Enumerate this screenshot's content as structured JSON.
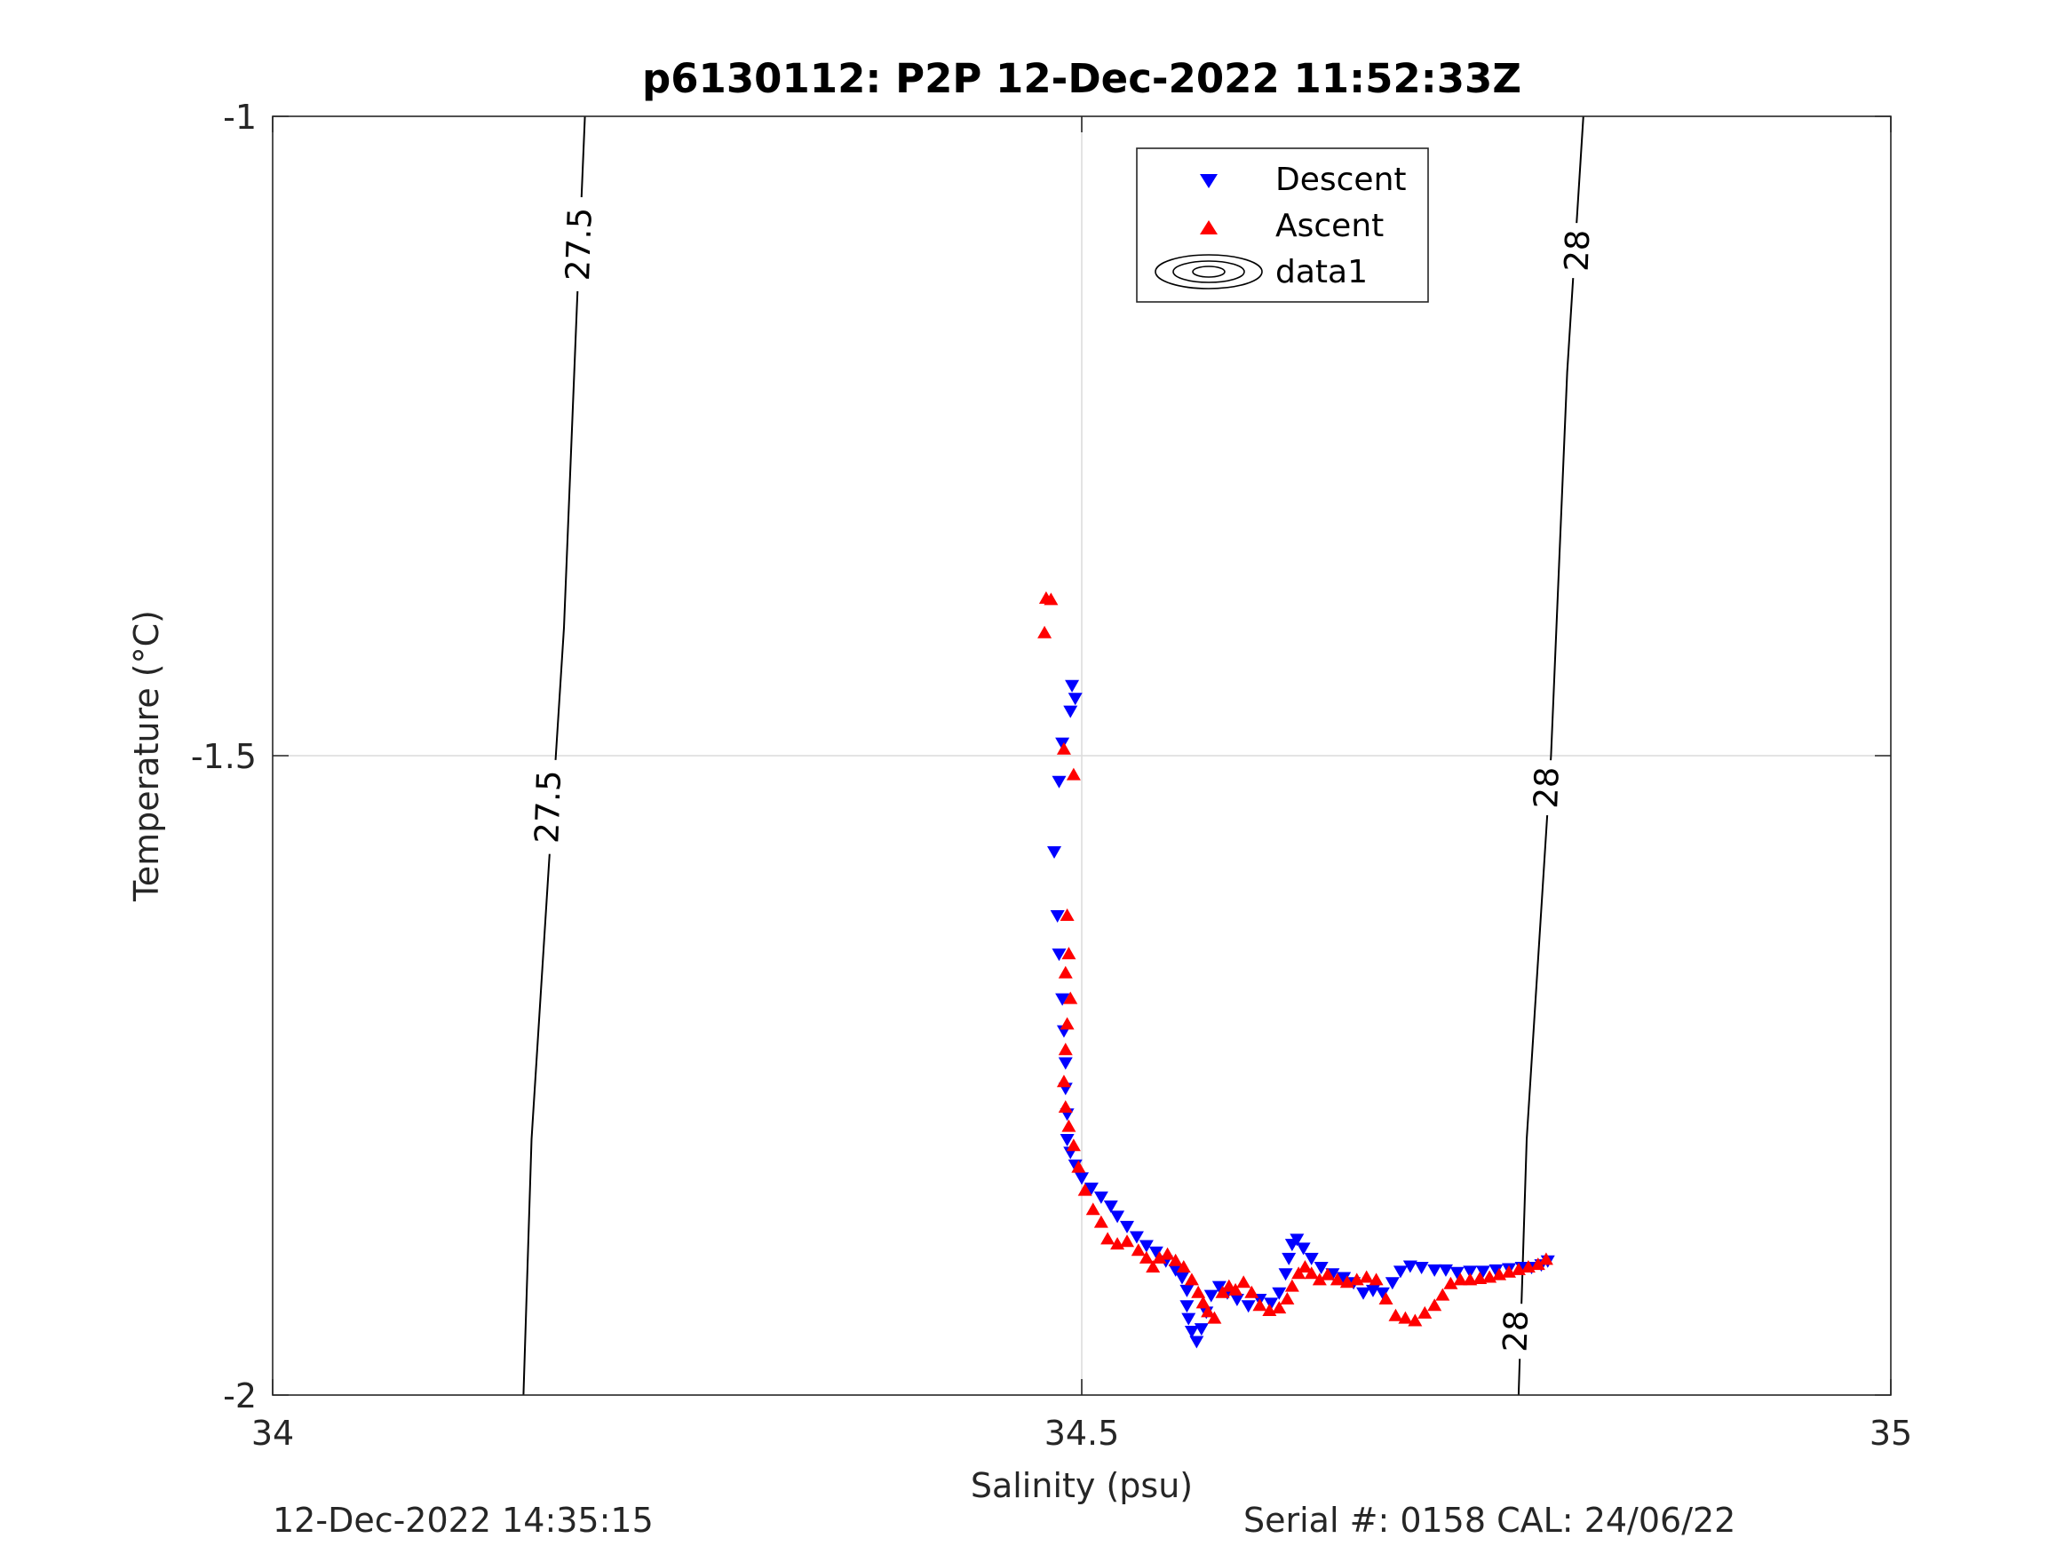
{
  "chart_data": {
    "type": "scatter",
    "title": "p6130112: P2P 12-Dec-2022 11:52:33Z",
    "xlabel": "Salinity (psu)",
    "ylabel": "Temperature (°C)",
    "xlim": [
      34,
      35
    ],
    "ylim": [
      -2,
      -1
    ],
    "x_ticks": [
      34,
      34.5,
      35
    ],
    "y_ticks": [
      -1,
      -1.5,
      -2
    ],
    "x_tick_labels": [
      "34",
      "34.5",
      "35"
    ],
    "y_tick_labels": [
      "-1",
      "-1.5",
      "-2"
    ],
    "grid": true,
    "legend_position": "top-center",
    "legend": [
      "Descent",
      "Ascent",
      "data1"
    ],
    "contours": [
      {
        "level": "27.5",
        "points": [
          [
            34.193,
            -1.0
          ],
          [
            34.188,
            -1.15
          ],
          [
            34.18,
            -1.4
          ],
          [
            34.17,
            -1.6
          ],
          [
            34.16,
            -1.8
          ],
          [
            34.155,
            -2.0
          ]
        ]
      },
      {
        "level": "28",
        "points": [
          [
            34.81,
            -1.0
          ],
          [
            34.8,
            -1.2
          ],
          [
            34.79,
            -1.5
          ],
          [
            34.775,
            -1.8
          ],
          [
            34.77,
            -2.0
          ]
        ]
      }
    ],
    "contour_labels": [
      {
        "text": "27.5",
        "x": 34.189,
        "y": -1.1
      },
      {
        "text": "27.5",
        "x": 34.17,
        "y": -1.54
      },
      {
        "text": "28",
        "x": 34.806,
        "y": -1.105
      },
      {
        "text": "28",
        "x": 34.787,
        "y": -1.525
      },
      {
        "text": "28",
        "x": 34.768,
        "y": -1.95
      }
    ],
    "series": [
      {
        "name": "Descent",
        "color": "#0000ff",
        "marker": "triangle-down",
        "points": [
          [
            34.494,
            -1.445
          ],
          [
            34.496,
            -1.455
          ],
          [
            34.493,
            -1.465
          ],
          [
            34.488,
            -1.49
          ],
          [
            34.486,
            -1.52
          ],
          [
            34.483,
            -1.575
          ],
          [
            34.485,
            -1.625
          ],
          [
            34.486,
            -1.655
          ],
          [
            34.488,
            -1.69
          ],
          [
            34.489,
            -1.715
          ],
          [
            34.49,
            -1.74
          ],
          [
            34.49,
            -1.76
          ],
          [
            34.491,
            -1.78
          ],
          [
            34.491,
            -1.8
          ],
          [
            34.493,
            -1.81
          ],
          [
            34.496,
            -1.82
          ],
          [
            34.5,
            -1.83
          ],
          [
            34.506,
            -1.838
          ],
          [
            34.512,
            -1.845
          ],
          [
            34.518,
            -1.852
          ],
          [
            34.522,
            -1.86
          ],
          [
            34.528,
            -1.868
          ],
          [
            34.534,
            -1.876
          ],
          [
            34.54,
            -1.883
          ],
          [
            34.546,
            -1.888
          ],
          [
            34.552,
            -1.895
          ],
          [
            34.558,
            -1.902
          ],
          [
            34.562,
            -1.908
          ],
          [
            34.565,
            -1.918
          ],
          [
            34.565,
            -1.93
          ],
          [
            34.566,
            -1.94
          ],
          [
            34.568,
            -1.95
          ],
          [
            34.571,
            -1.958
          ],
          [
            34.574,
            -1.948
          ],
          [
            34.577,
            -1.935
          ],
          [
            34.58,
            -1.922
          ],
          [
            34.585,
            -1.915
          ],
          [
            34.59,
            -1.92
          ],
          [
            34.596,
            -1.925
          ],
          [
            34.603,
            -1.93
          ],
          [
            34.61,
            -1.925
          ],
          [
            34.617,
            -1.928
          ],
          [
            34.622,
            -1.92
          ],
          [
            34.626,
            -1.905
          ],
          [
            34.628,
            -1.893
          ],
          [
            34.63,
            -1.882
          ],
          [
            34.633,
            -1.878
          ],
          [
            34.637,
            -1.885
          ],
          [
            34.642,
            -1.893
          ],
          [
            34.648,
            -1.9
          ],
          [
            34.655,
            -1.905
          ],
          [
            34.662,
            -1.908
          ],
          [
            34.668,
            -1.912
          ],
          [
            34.674,
            -1.92
          ],
          [
            34.68,
            -1.918
          ],
          [
            34.686,
            -1.92
          ],
          [
            34.692,
            -1.912
          ],
          [
            34.697,
            -1.903
          ],
          [
            34.703,
            -1.899
          ],
          [
            34.71,
            -1.9
          ],
          [
            34.718,
            -1.902
          ],
          [
            34.725,
            -1.902
          ],
          [
            34.732,
            -1.904
          ],
          [
            34.74,
            -1.903
          ],
          [
            34.748,
            -1.903
          ],
          [
            34.756,
            -1.902
          ],
          [
            34.764,
            -1.901
          ],
          [
            34.772,
            -1.9
          ],
          [
            34.778,
            -1.9
          ],
          [
            34.784,
            -1.898
          ],
          [
            34.788,
            -1.895
          ]
        ]
      },
      {
        "name": "Ascent",
        "color": "#ff0000",
        "marker": "triangle-up",
        "points": [
          [
            34.477,
            -1.404
          ],
          [
            34.478,
            -1.377
          ],
          [
            34.481,
            -1.378
          ],
          [
            34.489,
            -1.495
          ],
          [
            34.495,
            -1.515
          ],
          [
            34.491,
            -1.625
          ],
          [
            34.492,
            -1.655
          ],
          [
            34.49,
            -1.67
          ],
          [
            34.493,
            -1.69
          ],
          [
            34.491,
            -1.71
          ],
          [
            34.49,
            -1.73
          ],
          [
            34.489,
            -1.755
          ],
          [
            34.49,
            -1.775
          ],
          [
            34.492,
            -1.79
          ],
          [
            34.495,
            -1.805
          ],
          [
            34.498,
            -1.822
          ],
          [
            34.502,
            -1.84
          ],
          [
            34.507,
            -1.855
          ],
          [
            34.512,
            -1.865
          ],
          [
            34.516,
            -1.878
          ],
          [
            34.522,
            -1.882
          ],
          [
            34.528,
            -1.88
          ],
          [
            34.535,
            -1.887
          ],
          [
            34.54,
            -1.893
          ],
          [
            34.544,
            -1.9
          ],
          [
            34.548,
            -1.893
          ],
          [
            34.553,
            -1.89
          ],
          [
            34.558,
            -1.895
          ],
          [
            34.563,
            -1.9
          ],
          [
            34.568,
            -1.91
          ],
          [
            34.572,
            -1.92
          ],
          [
            34.575,
            -1.928
          ],
          [
            34.578,
            -1.935
          ],
          [
            34.582,
            -1.94
          ],
          [
            34.587,
            -1.92
          ],
          [
            34.591,
            -1.915
          ],
          [
            34.595,
            -1.918
          ],
          [
            34.6,
            -1.912
          ],
          [
            34.605,
            -1.92
          ],
          [
            34.61,
            -1.93
          ],
          [
            34.616,
            -1.934
          ],
          [
            34.622,
            -1.932
          ],
          [
            34.627,
            -1.925
          ],
          [
            34.63,
            -1.915
          ],
          [
            34.634,
            -1.905
          ],
          [
            34.638,
            -1.9
          ],
          [
            34.642,
            -1.905
          ],
          [
            34.647,
            -1.91
          ],
          [
            34.652,
            -1.906
          ],
          [
            34.658,
            -1.91
          ],
          [
            34.664,
            -1.912
          ],
          [
            34.67,
            -1.91
          ],
          [
            34.676,
            -1.908
          ],
          [
            34.682,
            -1.91
          ],
          [
            34.688,
            -1.925
          ],
          [
            34.694,
            -1.938
          ],
          [
            34.7,
            -1.94
          ],
          [
            34.706,
            -1.942
          ],
          [
            34.712,
            -1.936
          ],
          [
            34.718,
            -1.93
          ],
          [
            34.723,
            -1.922
          ],
          [
            34.728,
            -1.913
          ],
          [
            34.734,
            -1.91
          ],
          [
            34.74,
            -1.91
          ],
          [
            34.746,
            -1.909
          ],
          [
            34.752,
            -1.908
          ],
          [
            34.758,
            -1.906
          ],
          [
            34.764,
            -1.904
          ],
          [
            34.77,
            -1.902
          ],
          [
            34.776,
            -1.9
          ],
          [
            34.782,
            -1.898
          ],
          [
            34.787,
            -1.894
          ]
        ]
      }
    ]
  },
  "footer": {
    "timestamp": "12-Dec-2022 14:35:15",
    "serial": "Serial #: 0158  CAL: 24/06/22"
  }
}
